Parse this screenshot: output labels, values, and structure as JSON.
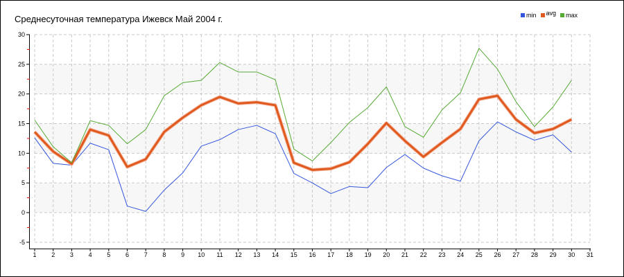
{
  "chart_data": {
    "type": "line",
    "title": "Среднесуточная температура Ижевск  Май 2004 г.",
    "xlabel": "",
    "ylabel": "",
    "xlim": [
      1,
      31
    ],
    "ylim": [
      -5,
      30
    ],
    "x_ticks": [
      "1",
      "2",
      "3",
      "4",
      "5",
      "6",
      "7",
      "8",
      "9",
      "10",
      "11",
      "12",
      "13",
      "14",
      "15",
      "16",
      "17",
      "18",
      "19",
      "20",
      "21",
      "22",
      "23",
      "24",
      "25",
      "26",
      "27",
      "28",
      "29",
      "30",
      "31"
    ],
    "y_ticks": [
      "-5",
      "0",
      "5",
      "10",
      "15",
      "20",
      "25",
      "30"
    ],
    "grid": true,
    "legend_position": "top-right",
    "x": [
      1,
      2,
      3,
      4,
      5,
      6,
      7,
      8,
      9,
      10,
      11,
      12,
      13,
      14,
      15,
      16,
      17,
      18,
      19,
      20,
      21,
      22,
      23,
      24,
      25,
      26,
      27,
      28,
      29,
      30
    ],
    "series": [
      {
        "name": "min",
        "color": "#3355dd",
        "values": [
          12.6,
          8.3,
          8.0,
          11.7,
          10.6,
          1.1,
          0.2,
          3.8,
          6.7,
          11.2,
          12.3,
          14.0,
          14.7,
          13.3,
          6.6,
          5.0,
          3.2,
          4.4,
          4.2,
          7.6,
          9.8,
          7.5,
          6.2,
          5.3,
          12.1,
          15.3,
          13.6,
          12.2,
          13.1,
          10.2
        ]
      },
      {
        "name": "avg",
        "color": "#e05a20",
        "values": [
          13.6,
          10.3,
          8.2,
          14.0,
          13.0,
          7.7,
          9.0,
          13.6,
          16.0,
          18.1,
          19.5,
          18.4,
          18.6,
          18.1,
          8.4,
          7.2,
          7.4,
          8.5,
          11.6,
          15.1,
          12.1,
          9.4,
          11.8,
          14.1,
          19.1,
          19.7,
          15.7,
          13.4,
          14.1,
          15.7
        ]
      },
      {
        "name": "max",
        "color": "#55aa33",
        "values": [
          15.6,
          11.1,
          8.4,
          15.5,
          14.7,
          11.6,
          14.0,
          19.7,
          21.9,
          22.3,
          25.3,
          23.7,
          23.7,
          22.4,
          10.7,
          8.7,
          11.8,
          15.2,
          17.7,
          21.2,
          14.5,
          12.7,
          17.3,
          20.2,
          27.7,
          24.2,
          18.7,
          14.5,
          17.8,
          22.3
        ]
      }
    ]
  }
}
